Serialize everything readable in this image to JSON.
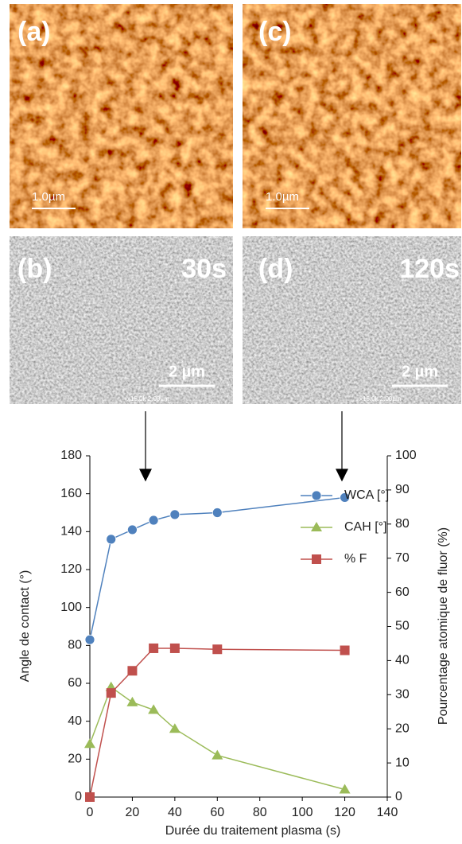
{
  "panels": [
    {
      "label": "(a)",
      "scale": "1.0µm"
    },
    {
      "label": "(c)",
      "scale": "1.0µm"
    },
    {
      "label": "(b)",
      "time": "30s",
      "scale": "2 µm",
      "info": "x15.0k 2.00µm"
    },
    {
      "label": "(d)",
      "time": "120s",
      "scale": "2 µm",
      "info": "x15.0k 2.00µm"
    }
  ],
  "chart_data": {
    "type": "line",
    "xlabel": "Durée du traitement plasma (s)",
    "ylabel": "Angle de contact (°)",
    "y2label": "Pourcentage atomique de fluor (%)",
    "x": [
      0,
      10,
      20,
      30,
      40,
      60,
      120
    ],
    "series": [
      {
        "name": "WCA [°]",
        "color": "#4f81bd",
        "marker": "circle",
        "values": [
          83,
          136,
          141,
          146,
          149,
          150,
          158
        ]
      },
      {
        "name": "CAH [°]",
        "color": "#9bbb59",
        "marker": "triangle",
        "values": [
          28,
          58,
          50,
          46,
          36,
          22,
          4
        ]
      },
      {
        "name": "% F",
        "color": "#c0504d",
        "marker": "square",
        "axis": "y2",
        "values": [
          0,
          30.5,
          37,
          43.6,
          43.6,
          43.3,
          43
        ]
      }
    ],
    "xlim": [
      0,
      140
    ],
    "xticks": [
      0,
      20,
      40,
      60,
      80,
      100,
      120,
      140
    ],
    "ylim": [
      0,
      180
    ],
    "yticks": [
      0,
      20,
      40,
      60,
      80,
      100,
      120,
      140,
      160,
      180
    ],
    "y2lim": [
      0,
      100
    ],
    "y2ticks": [
      0,
      10,
      20,
      30,
      40,
      50,
      60,
      70,
      80,
      90,
      100
    ],
    "grid": false,
    "legend": "right"
  }
}
